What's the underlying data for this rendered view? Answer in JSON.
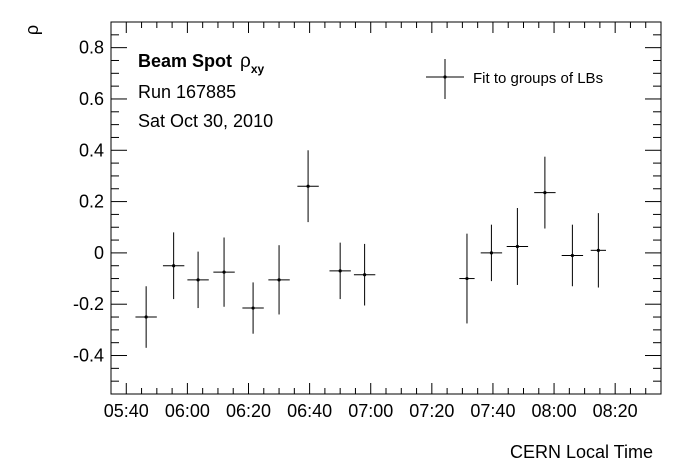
{
  "chart_data": {
    "type": "scatter",
    "ylabel": "ρ",
    "xlabel": "CERN Local Time",
    "ylim": [
      -0.55,
      0.9
    ],
    "xlim_minutes": [
      335,
      515
    ],
    "y_ticks": [
      {
        "value": 0.8,
        "label": "0.8"
      },
      {
        "value": 0.6,
        "label": "0.6"
      },
      {
        "value": 0.4,
        "label": "0.4"
      },
      {
        "value": 0.2,
        "label": "0.2"
      },
      {
        "value": 0,
        "label": "0"
      },
      {
        "value": -0.2,
        "label": "-0.2"
      },
      {
        "value": -0.4,
        "label": "-0.4"
      }
    ],
    "x_ticks": [
      {
        "minute": 340,
        "label": "05:40"
      },
      {
        "minute": 360,
        "label": "06:00"
      },
      {
        "minute": 380,
        "label": "06:20"
      },
      {
        "minute": 400,
        "label": "06:40"
      },
      {
        "minute": 420,
        "label": "07:00"
      },
      {
        "minute": 440,
        "label": "07:20"
      },
      {
        "minute": 460,
        "label": "07:40"
      },
      {
        "minute": 480,
        "label": "08:00"
      },
      {
        "minute": 500,
        "label": "08:20"
      }
    ],
    "grid": false,
    "legend": {
      "position": "top-right",
      "entries": [
        "Fit to groups of LBs"
      ]
    },
    "annotations": {
      "title_bold": "Beam Spot",
      "title_symbol": "ρ",
      "title_sub": "xy",
      "run": "Run 167885",
      "date": "Sat Oct 30, 2010"
    },
    "series": [
      {
        "name": "Fit to groups of LBs",
        "points": [
          {
            "x": 346.5,
            "xerr": 3.5,
            "y": -0.25,
            "yerr": 0.12
          },
          {
            "x": 355.5,
            "xerr": 3.5,
            "y": -0.05,
            "yerr": 0.13
          },
          {
            "x": 363.5,
            "xerr": 3.5,
            "y": -0.105,
            "yerr": 0.11
          },
          {
            "x": 372.0,
            "xerr": 3.5,
            "y": -0.075,
            "yerr": 0.135
          },
          {
            "x": 381.5,
            "xerr": 3.5,
            "y": -0.215,
            "yerr": 0.1
          },
          {
            "x": 390.0,
            "xerr": 3.5,
            "y": -0.105,
            "yerr": 0.135
          },
          {
            "x": 399.5,
            "xerr": 3.5,
            "y": 0.26,
            "yerr": 0.14
          },
          {
            "x": 410.0,
            "xerr": 3.5,
            "y": -0.07,
            "yerr": 0.11
          },
          {
            "x": 418.0,
            "xerr": 3.5,
            "y": -0.085,
            "yerr": 0.12
          },
          {
            "x": 451.5,
            "xerr": 2.5,
            "y": -0.1,
            "yerr": 0.175
          },
          {
            "x": 459.5,
            "xerr": 3.5,
            "y": 0.0,
            "yerr": 0.11
          },
          {
            "x": 468.0,
            "xerr": 3.5,
            "y": 0.025,
            "yerr": 0.15
          },
          {
            "x": 477.0,
            "xerr": 3.5,
            "y": 0.235,
            "yerr": 0.14
          },
          {
            "x": 486.0,
            "xerr": 3.5,
            "y": -0.01,
            "yerr": 0.12
          },
          {
            "x": 494.5,
            "xerr": 2.5,
            "y": 0.01,
            "yerr": 0.145
          }
        ]
      }
    ]
  }
}
